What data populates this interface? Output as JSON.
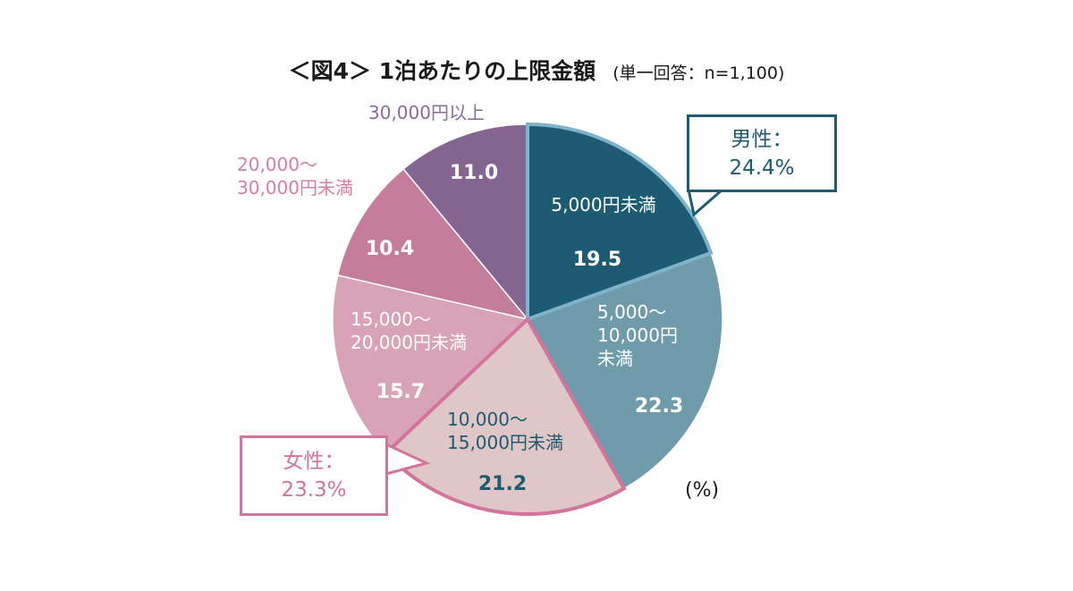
{
  "title": "＜図4＞ 1泊あたりの上限金額",
  "subtitle": "(単一回答：n=1,100)",
  "unit_label": "(%)",
  "callouts": {
    "male": {
      "line1": "男性：",
      "line2": "24.4%",
      "color": "#1f5a70",
      "border": "#1f5a70"
    },
    "female": {
      "line1": "女性：",
      "line2": "23.3%",
      "color": "#d4749c",
      "border": "#d4749c"
    }
  },
  "chart_data": {
    "type": "pie",
    "title": "＜図4＞ 1泊あたりの上限金額",
    "unit": "%",
    "slices": [
      {
        "label": [
          "5,000円未満"
        ],
        "value": 19.5,
        "color": "#1d5b72",
        "label_color": "#ffffff",
        "value_color": "#ffffff"
      },
      {
        "label": [
          "5,000～",
          "10,000円",
          "未満"
        ],
        "value": 22.3,
        "color": "#6f9bab",
        "label_color": "#ffffff",
        "value_color": "#ffffff"
      },
      {
        "label": [
          "10,000～",
          "15,000円未満"
        ],
        "value": 21.2,
        "color": "#dfc7c7",
        "label_color": "#1f5a70",
        "value_color": "#1f5a70"
      },
      {
        "label": [
          "15,000～",
          "20,000円未満"
        ],
        "value": 15.7,
        "color": "#d8a3b6",
        "label_color": "#ffffff",
        "value_color": "#ffffff"
      },
      {
        "label": [
          "20,000～",
          "30,000円未満"
        ],
        "value": 10.4,
        "color": "#c67d9b",
        "label_color": "#d67fa4",
        "value_color": "#ffffff"
      },
      {
        "label": [
          "30,000円以上"
        ],
        "value": 11.0,
        "color": "#836590",
        "label_color": "#8a6b96",
        "value_color": "#ffffff"
      }
    ],
    "highlight_outline": {
      "male_slice": 0,
      "male_color": "#7fb2cb",
      "female_slice": 2,
      "female_color": "#d4749c"
    }
  }
}
